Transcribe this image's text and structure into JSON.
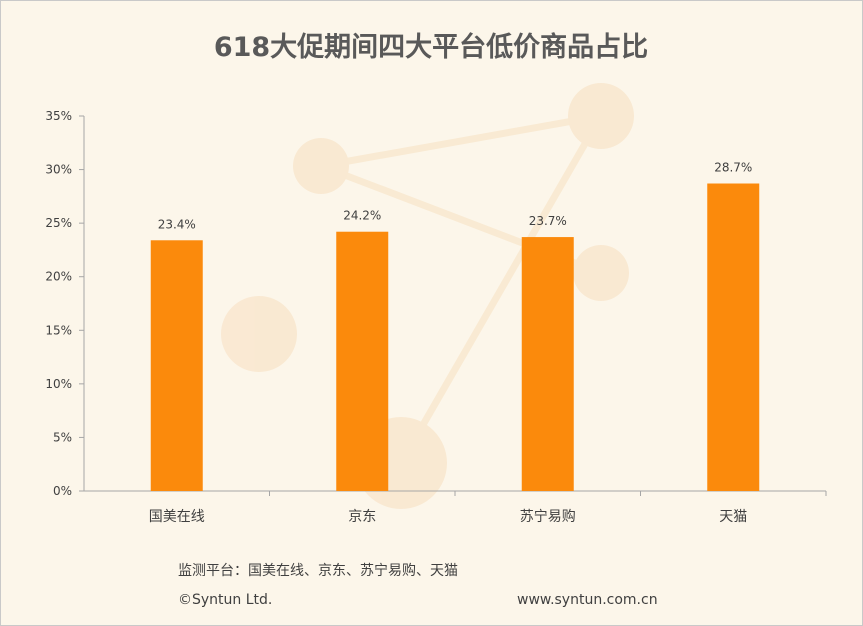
{
  "chart_data": {
    "type": "bar",
    "title": "618大促期间四大平台低价商品占比",
    "categories": [
      "国美在线",
      "京东",
      "苏宁易购",
      "天猫"
    ],
    "values": [
      23.4,
      24.2,
      23.7,
      28.7
    ],
    "data_labels": [
      "23.4%",
      "24.2%",
      "23.7%",
      "28.7%"
    ],
    "ylim": [
      0,
      35
    ],
    "yticks": [
      "0%",
      "5%",
      "10%",
      "15%",
      "20%",
      "25%",
      "30%",
      "35%"
    ],
    "xlabel": "",
    "ylabel": "",
    "grid": false,
    "legend": "none",
    "colors": {
      "bar": "#fb8a0c",
      "background": "#fcf6ea"
    }
  },
  "footer": {
    "source": "监测平台：国美在线、京东、苏宁易购、天猫",
    "copyright": "©Syntun Ltd.",
    "website": "www.syntun.com.cn"
  }
}
